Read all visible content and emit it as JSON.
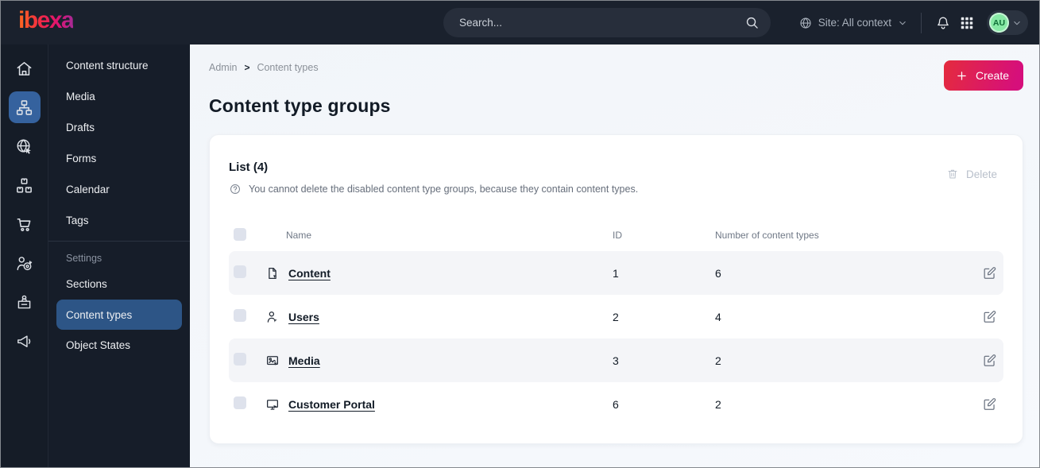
{
  "topbar": {
    "logo_text": "ibexa",
    "search": {
      "placeholder": "Search..."
    },
    "site_context": {
      "label": "Site: All context"
    },
    "avatar": {
      "initials": "AU"
    }
  },
  "icon_rail": {
    "items": [
      {
        "name": "dashboard",
        "icon": "home-icon",
        "active": false
      },
      {
        "name": "content",
        "icon": "sitemap-icon",
        "active": true
      },
      {
        "name": "site",
        "icon": "globe-pointer-icon",
        "active": false
      },
      {
        "name": "products",
        "icon": "products-icon",
        "active": false
      },
      {
        "name": "commerce",
        "icon": "cart-icon",
        "active": false
      },
      {
        "name": "customers",
        "icon": "customer-target-icon",
        "active": false
      },
      {
        "name": "corporate",
        "icon": "badge-icon",
        "active": false
      },
      {
        "name": "marketing",
        "icon": "megaphone-icon",
        "active": false
      }
    ]
  },
  "sidebar": {
    "main_items": [
      {
        "label": "Content structure",
        "active": false
      },
      {
        "label": "Media",
        "active": false
      },
      {
        "label": "Drafts",
        "active": false
      },
      {
        "label": "Forms",
        "active": false
      },
      {
        "label": "Calendar",
        "active": false
      },
      {
        "label": "Tags",
        "active": false
      }
    ],
    "section_label": "Settings",
    "settings_items": [
      {
        "label": "Sections",
        "active": false
      },
      {
        "label": "Content types",
        "active": true
      },
      {
        "label": "Object States",
        "active": false
      }
    ]
  },
  "breadcrumb": {
    "items": [
      "Admin",
      "Content types"
    ],
    "separator": ">"
  },
  "page": {
    "title": "Content type groups"
  },
  "actions": {
    "create_label": "Create",
    "delete_label": "Delete"
  },
  "list_card": {
    "title": "List (4)",
    "info_text": "You cannot delete the disabled content type groups, because they contain content types.",
    "table": {
      "columns": [
        "Name",
        "ID",
        "Number of content types"
      ],
      "rows": [
        {
          "icon": "content-file-icon",
          "name": "Content",
          "id": "1",
          "count": "6"
        },
        {
          "icon": "users-icon",
          "name": "Users",
          "id": "2",
          "count": "4"
        },
        {
          "icon": "media-image-icon",
          "name": "Media",
          "id": "3",
          "count": "2"
        },
        {
          "icon": "portal-monitor-icon",
          "name": "Customer Portal",
          "id": "6",
          "count": "2"
        }
      ]
    }
  },
  "colors": {
    "topbar_bg": "#1a212d",
    "sidebar_bg": "#161d29",
    "rail_active_blue": "#35629e",
    "menu_active_blue": "#2d5586",
    "accent_gradient_start": "#e42b3e",
    "accent_gradient_end": "#d60f7b",
    "avatar_green": "#87e9a5",
    "row_stripe": "#f4f5f8"
  }
}
